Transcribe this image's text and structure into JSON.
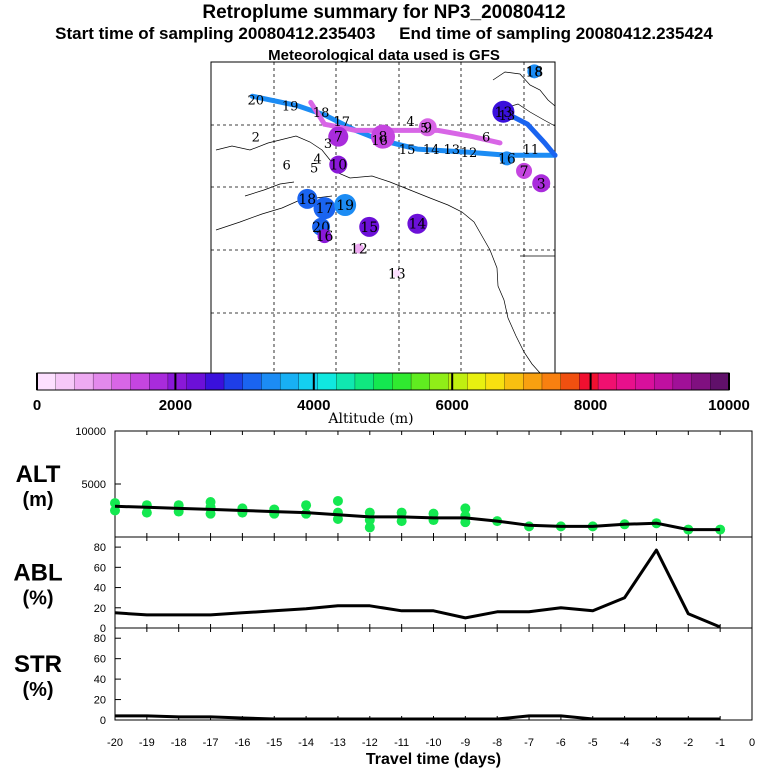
{
  "header": {
    "title": "Retroplume summary for NP3_20080412",
    "subtitle": "Start time of sampling 20080412.235403     End time of sampling 20080412.235424",
    "met": "Meteorological data used is GFS"
  },
  "colorbar": {
    "title": "Altitude (m)",
    "tick_labels": [
      "0",
      "2000",
      "4000",
      "6000",
      "8000",
      "10000"
    ],
    "colors": [
      "#fde0ff",
      "#f6c8f8",
      "#eeaaf2",
      "#e389ec",
      "#d866e6",
      "#c545e0",
      "#a92bdc",
      "#8a18d8",
      "#6c10d8",
      "#3a10dc",
      "#1e3ee8",
      "#1a64f0",
      "#1c8cf4",
      "#18b0f4",
      "#14d0f0",
      "#10e8e0",
      "#10e8b0",
      "#10e880",
      "#14e850",
      "#30ea30",
      "#60ec20",
      "#90ee18",
      "#c0ef10",
      "#e8f010",
      "#f8e010",
      "#f8c010",
      "#f8a010",
      "#f88010",
      "#f05010",
      "#f01030",
      "#f01070",
      "#e8108c",
      "#d8109c",
      "#c010a0",
      "#a01098",
      "#801080",
      "#60106a"
    ]
  },
  "map": {
    "path_labels": [
      {
        "t": "20",
        "lon": 0.13,
        "lat": 0.12
      },
      {
        "t": "19",
        "lon": 0.23,
        "lat": 0.14
      },
      {
        "t": "18",
        "lon": 0.32,
        "lat": 0.16
      },
      {
        "t": "17",
        "lon": 0.38,
        "lat": 0.19
      },
      {
        "t": "16",
        "lon": 0.49,
        "lat": 0.25
      },
      {
        "t": "15",
        "lon": 0.57,
        "lat": 0.28
      },
      {
        "t": "14",
        "lon": 0.64,
        "lat": 0.28
      },
      {
        "t": "13",
        "lon": 0.7,
        "lat": 0.28
      },
      {
        "t": "12",
        "lon": 0.75,
        "lat": 0.29
      },
      {
        "t": "6",
        "lon": 0.8,
        "lat": 0.24
      },
      {
        "t": "5",
        "lon": 0.62,
        "lat": 0.21
      },
      {
        "t": "4",
        "lon": 0.58,
        "lat": 0.19
      },
      {
        "t": "3",
        "lon": 0.34,
        "lat": 0.26
      },
      {
        "t": "2",
        "lon": 0.13,
        "lat": 0.24
      },
      {
        "t": "6",
        "lon": 0.22,
        "lat": 0.33
      },
      {
        "t": "4",
        "lon": 0.31,
        "lat": 0.31
      },
      {
        "t": "5",
        "lon": 0.3,
        "lat": 0.34
      },
      {
        "t": "11",
        "lon": 0.93,
        "lat": 0.28
      },
      {
        "t": "18",
        "lon": 0.94,
        "lat": 0.03
      },
      {
        "t": "13",
        "lon": 0.86,
        "lat": 0.17
      }
    ],
    "dots": [
      {
        "t": "10",
        "lon": 0.37,
        "lat": 0.33,
        "c": "#8a18d8",
        "r": 9
      },
      {
        "t": "18",
        "lon": 0.28,
        "lat": 0.44,
        "c": "#1a64f0",
        "r": 10
      },
      {
        "t": "17",
        "lon": 0.33,
        "lat": 0.47,
        "c": "#1a64f0",
        "r": 11
      },
      {
        "t": "19",
        "lon": 0.39,
        "lat": 0.46,
        "c": "#1c8cf4",
        "r": 11
      },
      {
        "t": "20",
        "lon": 0.32,
        "lat": 0.53,
        "c": "#1a64f0",
        "r": 9
      },
      {
        "t": "16",
        "lon": 0.33,
        "lat": 0.56,
        "c": "#8a18d8",
        "r": 7
      },
      {
        "t": "15",
        "lon": 0.46,
        "lat": 0.53,
        "c": "#6c10d8",
        "r": 10
      },
      {
        "t": "14",
        "lon": 0.6,
        "lat": 0.52,
        "c": "#6c10d8",
        "r": 10
      },
      {
        "t": "12",
        "lon": 0.43,
        "lat": 0.6,
        "c": "#eeaaf2",
        "r": 5
      },
      {
        "t": "13",
        "lon": 0.54,
        "lat": 0.68,
        "c": "#fde0ff",
        "r": 4
      },
      {
        "t": "7",
        "lon": 0.37,
        "lat": 0.24,
        "c": "#a92bdc",
        "r": 10
      },
      {
        "t": "8",
        "lon": 0.5,
        "lat": 0.24,
        "c": "#c545e0",
        "r": 12
      },
      {
        "t": "9",
        "lon": 0.63,
        "lat": 0.21,
        "c": "#d866e6",
        "r": 9
      },
      {
        "t": "13",
        "lon": 0.85,
        "lat": 0.16,
        "c": "#3a10dc",
        "r": 11
      },
      {
        "t": "16",
        "lon": 0.86,
        "lat": 0.31,
        "c": "#1c8cf4",
        "r": 7
      },
      {
        "t": "7",
        "lon": 0.91,
        "lat": 0.35,
        "c": "#c545e0",
        "r": 8
      },
      {
        "t": "3",
        "lon": 0.96,
        "lat": 0.39,
        "c": "#a92bdc",
        "r": 9
      },
      {
        "t": "18",
        "lon": 0.94,
        "lat": 0.03,
        "c": "#1c8cf4",
        "r": 7
      }
    ],
    "paths": [
      {
        "c": "#1c8cf4",
        "pts": [
          [
            0.12,
            0.11
          ],
          [
            0.25,
            0.14
          ],
          [
            0.33,
            0.17
          ],
          [
            0.42,
            0.22
          ],
          [
            0.49,
            0.25
          ],
          [
            0.6,
            0.28
          ],
          [
            0.75,
            0.29
          ],
          [
            0.86,
            0.3
          ],
          [
            1.0,
            0.3
          ]
        ]
      },
      {
        "c": "#d866e6",
        "pts": [
          [
            0.29,
            0.13
          ],
          [
            0.33,
            0.2
          ],
          [
            0.42,
            0.22
          ],
          [
            0.55,
            0.22
          ],
          [
            0.66,
            0.22
          ],
          [
            0.76,
            0.24
          ],
          [
            0.84,
            0.26
          ]
        ]
      },
      {
        "c": "#1a64f0",
        "pts": [
          [
            0.85,
            0.16
          ],
          [
            0.92,
            0.2
          ],
          [
            0.97,
            0.26
          ],
          [
            1.0,
            0.3
          ]
        ]
      }
    ]
  },
  "chart_data": [
    {
      "type": "line",
      "title": "ALT",
      "ylabel": "(m)",
      "ylim": [
        0,
        10000
      ],
      "yticks": [
        10000,
        5000
      ],
      "x": [
        -20,
        -19,
        -18,
        -17,
        -16,
        -15,
        -14,
        -13,
        -12,
        -11,
        -10,
        -9,
        -8,
        -7,
        -6,
        -5,
        -4,
        -3,
        -2,
        -1
      ],
      "series": [
        {
          "name": "median altitude",
          "values": [
            2900,
            2800,
            2700,
            2600,
            2500,
            2400,
            2300,
            2100,
            1900,
            1900,
            1800,
            1800,
            1500,
            1100,
            1000,
            1000,
            1200,
            1300,
            700,
            700
          ]
        }
      ],
      "scatter": [
        {
          "x": -20,
          "y": 3200
        },
        {
          "x": -20,
          "y": 2500
        },
        {
          "x": -19,
          "y": 3000
        },
        {
          "x": -19,
          "y": 2300
        },
        {
          "x": -18,
          "y": 3000
        },
        {
          "x": -18,
          "y": 2400
        },
        {
          "x": -17,
          "y": 2800
        },
        {
          "x": -17,
          "y": 2200
        },
        {
          "x": -17,
          "y": 3300
        },
        {
          "x": -16,
          "y": 2700
        },
        {
          "x": -16,
          "y": 2300
        },
        {
          "x": -15,
          "y": 2600
        },
        {
          "x": -15,
          "y": 2200
        },
        {
          "x": -14,
          "y": 3000
        },
        {
          "x": -14,
          "y": 2200
        },
        {
          "x": -13,
          "y": 3400
        },
        {
          "x": -13,
          "y": 2300
        },
        {
          "x": -13,
          "y": 1700
        },
        {
          "x": -12,
          "y": 2300
        },
        {
          "x": -12,
          "y": 1600
        },
        {
          "x": -12,
          "y": 900
        },
        {
          "x": -11,
          "y": 2300
        },
        {
          "x": -11,
          "y": 1500
        },
        {
          "x": -10,
          "y": 2200
        },
        {
          "x": -10,
          "y": 1600
        },
        {
          "x": -9,
          "y": 2700
        },
        {
          "x": -9,
          "y": 2000
        },
        {
          "x": -9,
          "y": 1400
        },
        {
          "x": -8,
          "y": 1500
        },
        {
          "x": -7,
          "y": 1000
        },
        {
          "x": -6,
          "y": 1000
        },
        {
          "x": -5,
          "y": 1000
        },
        {
          "x": -4,
          "y": 1200
        },
        {
          "x": -3,
          "y": 1300
        },
        {
          "x": -2,
          "y": 700
        },
        {
          "x": -1,
          "y": 700
        }
      ],
      "scatter_color": "#14e850",
      "line_color": "#000000"
    },
    {
      "type": "line",
      "title": "ABL",
      "ylabel": "(%)",
      "ylim": [
        0,
        90
      ],
      "yticks": [
        80,
        60,
        40,
        20,
        0
      ],
      "x": [
        -20,
        -19,
        -18,
        -17,
        -16,
        -15,
        -14,
        -13,
        -12,
        -11,
        -10,
        -9,
        -8,
        -7,
        -6,
        -5,
        -4,
        -3,
        -2,
        -1
      ],
      "series": [
        {
          "name": "ABL fraction",
          "values": [
            15,
            13,
            13,
            13,
            15,
            17,
            19,
            22,
            22,
            17,
            17,
            10,
            16,
            16,
            20,
            17,
            30,
            77,
            14,
            1
          ]
        }
      ]
    },
    {
      "type": "line",
      "title": "STR",
      "ylabel": "(%)",
      "ylim": [
        0,
        90
      ],
      "yticks": [
        80,
        60,
        40,
        20,
        0
      ],
      "x": [
        -20,
        -19,
        -18,
        -17,
        -16,
        -15,
        -14,
        -13,
        -12,
        -11,
        -10,
        -9,
        -8,
        -7,
        -6,
        -5,
        -4,
        -3,
        -2,
        -1
      ],
      "series": [
        {
          "name": "stratospheric fraction",
          "values": [
            4,
            4,
            3,
            3,
            2,
            1,
            1,
            1,
            1,
            1,
            1,
            1,
            1,
            4,
            4,
            1,
            1,
            1,
            1,
            1
          ]
        }
      ],
      "xlabel": "Travel time (days)",
      "xticks": [
        "-20",
        "-19",
        "-18",
        "-17",
        "-16",
        "-15",
        "-14",
        "-13",
        "-12",
        "-11",
        "-10",
        "-9",
        "-8",
        "-7",
        "-6",
        "-5",
        "-4",
        "-3",
        "-2",
        "-1",
        "0"
      ],
      "xlim": [
        -20,
        0
      ]
    }
  ]
}
